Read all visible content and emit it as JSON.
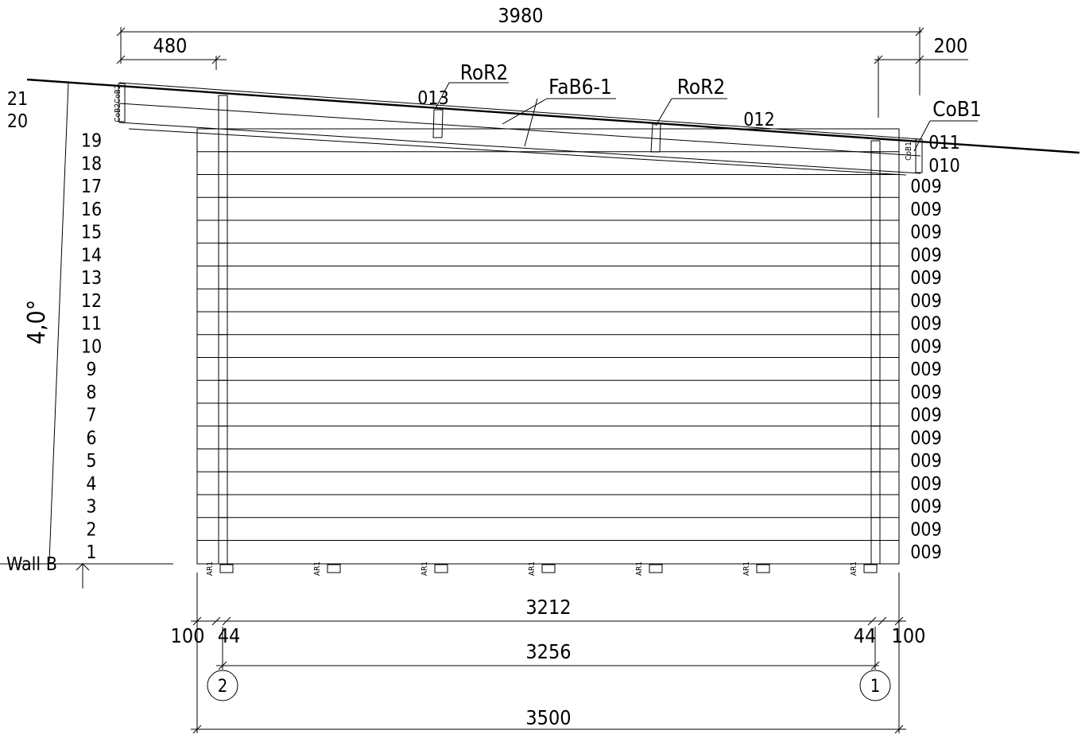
{
  "drawing": {
    "wall_label": "Wall B",
    "roof_angle": "4,0°",
    "dimensions": {
      "top_total": "3980",
      "top_left": "480",
      "top_right": "200",
      "bottom_outer_left": "100",
      "bottom_outer_right": "100",
      "bottom_inner_left": "44",
      "bottom_inner_right": "44",
      "span_upper": "3212",
      "span_middle": "3256",
      "span_total": "3500"
    },
    "callouts": {
      "ror2_left": "RoR2",
      "ror2_right": "RoR2",
      "fab": "FaB6-1",
      "cob1_right": "CoB1",
      "cob_left_tag": "CoB2CoB2",
      "cob_right_tag": "CoB1"
    },
    "part_codes": {
      "p013": "013",
      "p012": "012",
      "p011": "011",
      "p010": "010"
    },
    "row_numbers": [
      "1",
      "2",
      "3",
      "4",
      "5",
      "6",
      "7",
      "8",
      "9",
      "10",
      "11",
      "12",
      "13",
      "14",
      "15",
      "16",
      "17",
      "18",
      "19",
      "20",
      "21"
    ],
    "wall_codes": [
      "009",
      "009",
      "009",
      "009",
      "009",
      "009",
      "009",
      "009",
      "009",
      "009",
      "009",
      "009",
      "009",
      "009",
      "009",
      "009",
      "009"
    ],
    "anchor_label": "AR1",
    "axes": [
      "2",
      "1"
    ]
  }
}
